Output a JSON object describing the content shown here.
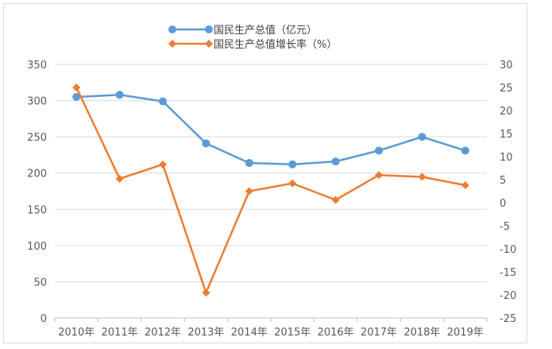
{
  "chart_data": {
    "type": "line",
    "categories": [
      "2010年",
      "2011年",
      "2012年",
      "2013年",
      "2014年",
      "2015年",
      "2016年",
      "2017年",
      "2018年",
      "2019年"
    ],
    "series": [
      {
        "name": "国民生产总值（亿元）",
        "axis": "left",
        "color": "#5b9bd5",
        "marker": "circle",
        "values": [
          305,
          308,
          299,
          241,
          214,
          212,
          216,
          231,
          250,
          231
        ]
      },
      {
        "name": "国民生产总值增长率（%）",
        "axis": "right",
        "color": "#ed7d31",
        "marker": "diamond",
        "values": [
          25.0,
          5.2,
          8.3,
          -19.5,
          2.5,
          4.2,
          0.6,
          6.0,
          5.6,
          3.8
        ]
      }
    ],
    "y_left": {
      "min": 0,
      "max": 350,
      "ticks": [
        "0",
        "50",
        "100",
        "150",
        "200",
        "250",
        "300",
        "350"
      ]
    },
    "y_right": {
      "min": -25,
      "max": 30,
      "ticks": [
        "-25",
        "-20",
        "-15",
        "-10",
        "-5",
        "0",
        "5",
        "10",
        "15",
        "20",
        "25",
        "30"
      ]
    },
    "grid": true,
    "legend_position": "top"
  }
}
